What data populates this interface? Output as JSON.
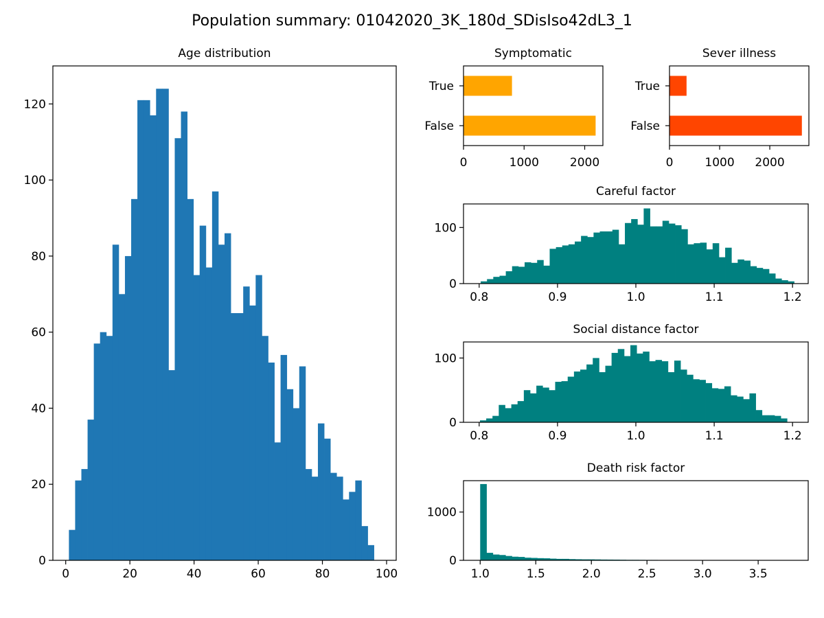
{
  "figure": {
    "title": "Population summary: 01042020_3K_180d_SDisIso42dL3_1"
  },
  "chart_data": [
    {
      "id": "age",
      "type": "histogram",
      "title": "Age distribution",
      "xlim": [
        -4,
        103
      ],
      "ylim": [
        0,
        130
      ],
      "xticks": [
        0,
        20,
        40,
        60,
        80,
        100
      ],
      "yticks": [
        0,
        20,
        40,
        60,
        80,
        100,
        120
      ],
      "color": "#1f77b4",
      "bin_start": 1,
      "bin_width": 1.94,
      "counts": [
        8,
        21,
        24,
        37,
        57,
        60,
        59,
        83,
        70,
        80,
        95,
        121,
        121,
        117,
        124,
        124,
        50,
        111,
        118,
        95,
        75,
        88,
        77,
        97,
        83,
        86,
        65,
        65,
        72,
        67,
        75,
        59,
        52,
        31,
        54,
        45,
        40,
        51,
        24,
        22,
        36,
        32,
        23,
        22,
        16,
        18,
        21,
        9,
        4
      ]
    },
    {
      "id": "symptomatic",
      "type": "barh",
      "title": "Symptomatic",
      "categories": [
        "False",
        "True"
      ],
      "values": [
        2180,
        800
      ],
      "xlim": [
        0,
        2300
      ],
      "xticks": [
        0,
        1000,
        2000
      ],
      "color": "#ffa500"
    },
    {
      "id": "severe",
      "type": "barh",
      "title": "Sever illness",
      "categories": [
        "False",
        "True"
      ],
      "values": [
        2640,
        340
      ],
      "xlim": [
        0,
        2780
      ],
      "xticks": [
        0,
        1000,
        2000
      ],
      "color": "#ff4500"
    },
    {
      "id": "careful",
      "type": "histogram",
      "title": "Careful factor",
      "xlim": [
        0.78,
        1.22
      ],
      "ylim": [
        0,
        142
      ],
      "xticks": [
        0.8,
        0.9,
        1.0,
        1.1,
        1.2
      ],
      "xtick_labels": [
        "0.8",
        "0.9",
        "1.0",
        "1.1",
        "1.2"
      ],
      "yticks": [
        0,
        100
      ],
      "color": "#008080",
      "bin_start": 0.802,
      "bin_width": 0.008,
      "counts": [
        4,
        8,
        12,
        14,
        22,
        31,
        30,
        38,
        37,
        42,
        32,
        62,
        65,
        68,
        70,
        75,
        85,
        83,
        91,
        93,
        93,
        96,
        70,
        108,
        115,
        105,
        134,
        102,
        102,
        112,
        107,
        104,
        97,
        70,
        72,
        73,
        61,
        72,
        47,
        64,
        37,
        43,
        41,
        31,
        28,
        26,
        18,
        9,
        6,
        4
      ]
    },
    {
      "id": "social",
      "type": "histogram",
      "title": "Social distance factor",
      "xlim": [
        0.78,
        1.22
      ],
      "ylim": [
        0,
        125
      ],
      "xticks": [
        0.8,
        0.9,
        1.0,
        1.1,
        1.2
      ],
      "xtick_labels": [
        "0.8",
        "0.9",
        "1.0",
        "1.1",
        "1.2"
      ],
      "yticks": [
        0,
        100
      ],
      "color": "#008080",
      "bin_start": 0.801,
      "bin_width": 0.008,
      "counts": [
        3,
        6,
        10,
        27,
        22,
        28,
        33,
        50,
        45,
        57,
        54,
        50,
        63,
        64,
        71,
        79,
        82,
        90,
        100,
        78,
        88,
        108,
        114,
        103,
        120,
        107,
        110,
        95,
        97,
        95,
        78,
        96,
        82,
        74,
        67,
        66,
        61,
        53,
        52,
        56,
        42,
        40,
        36,
        45,
        19,
        11,
        11,
        10,
        6
      ]
    },
    {
      "id": "death",
      "type": "histogram",
      "title": "Death risk factor",
      "xlim": [
        0.85,
        3.95
      ],
      "ylim": [
        0,
        1650
      ],
      "xticks": [
        1.0,
        1.5,
        2.0,
        2.5,
        3.0,
        3.5
      ],
      "xtick_labels": [
        "1.0",
        "1.5",
        "2.0",
        "2.5",
        "3.0",
        "3.5"
      ],
      "yticks": [
        0,
        1000
      ],
      "color": "#008080",
      "bin_start": 1.0,
      "bin_width": 0.057,
      "counts": [
        1580,
        155,
        120,
        110,
        90,
        75,
        70,
        55,
        50,
        45,
        42,
        35,
        30,
        30,
        25,
        22,
        20,
        20,
        18,
        16,
        15,
        14,
        12,
        10,
        10,
        9,
        8,
        8,
        7,
        6,
        6,
        5,
        5,
        4,
        4,
        4,
        3,
        3,
        3,
        3,
        2,
        2,
        2,
        2,
        2,
        2,
        2,
        1,
        1
      ]
    }
  ]
}
